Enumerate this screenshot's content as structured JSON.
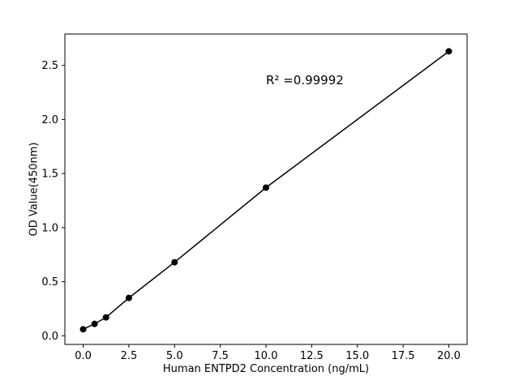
{
  "chart_data": {
    "type": "scatter",
    "x": [
      0,
      0.625,
      1.25,
      2.5,
      5,
      10,
      20
    ],
    "y": [
      0.06,
      0.11,
      0.17,
      0.35,
      0.68,
      1.37,
      2.63
    ],
    "title": "",
    "xlabel": "Human ENTPD2 Concentration (ng/mL)",
    "ylabel": "OD Value(450nm)",
    "annotation": "R² =0.99992",
    "xlim": [
      -1,
      21
    ],
    "ylim": [
      -0.08,
      2.79
    ],
    "xticks": [
      0,
      2.5,
      5,
      7.5,
      10,
      12.5,
      15,
      17.5,
      20
    ],
    "xtick_labels": [
      "0.0",
      "2.5",
      "5.0",
      "7.5",
      "10.0",
      "12.5",
      "15.0",
      "17.5",
      "20.0"
    ],
    "yticks": [
      0,
      0.5,
      1,
      1.5,
      2,
      2.5
    ],
    "ytick_labels": [
      "0.0",
      "0.5",
      "1.0",
      "1.5",
      "2.0",
      "2.5"
    ],
    "grid": false,
    "legend": null,
    "line_color": "#000000",
    "marker_color": "#000000",
    "background_color": "#ffffff"
  }
}
